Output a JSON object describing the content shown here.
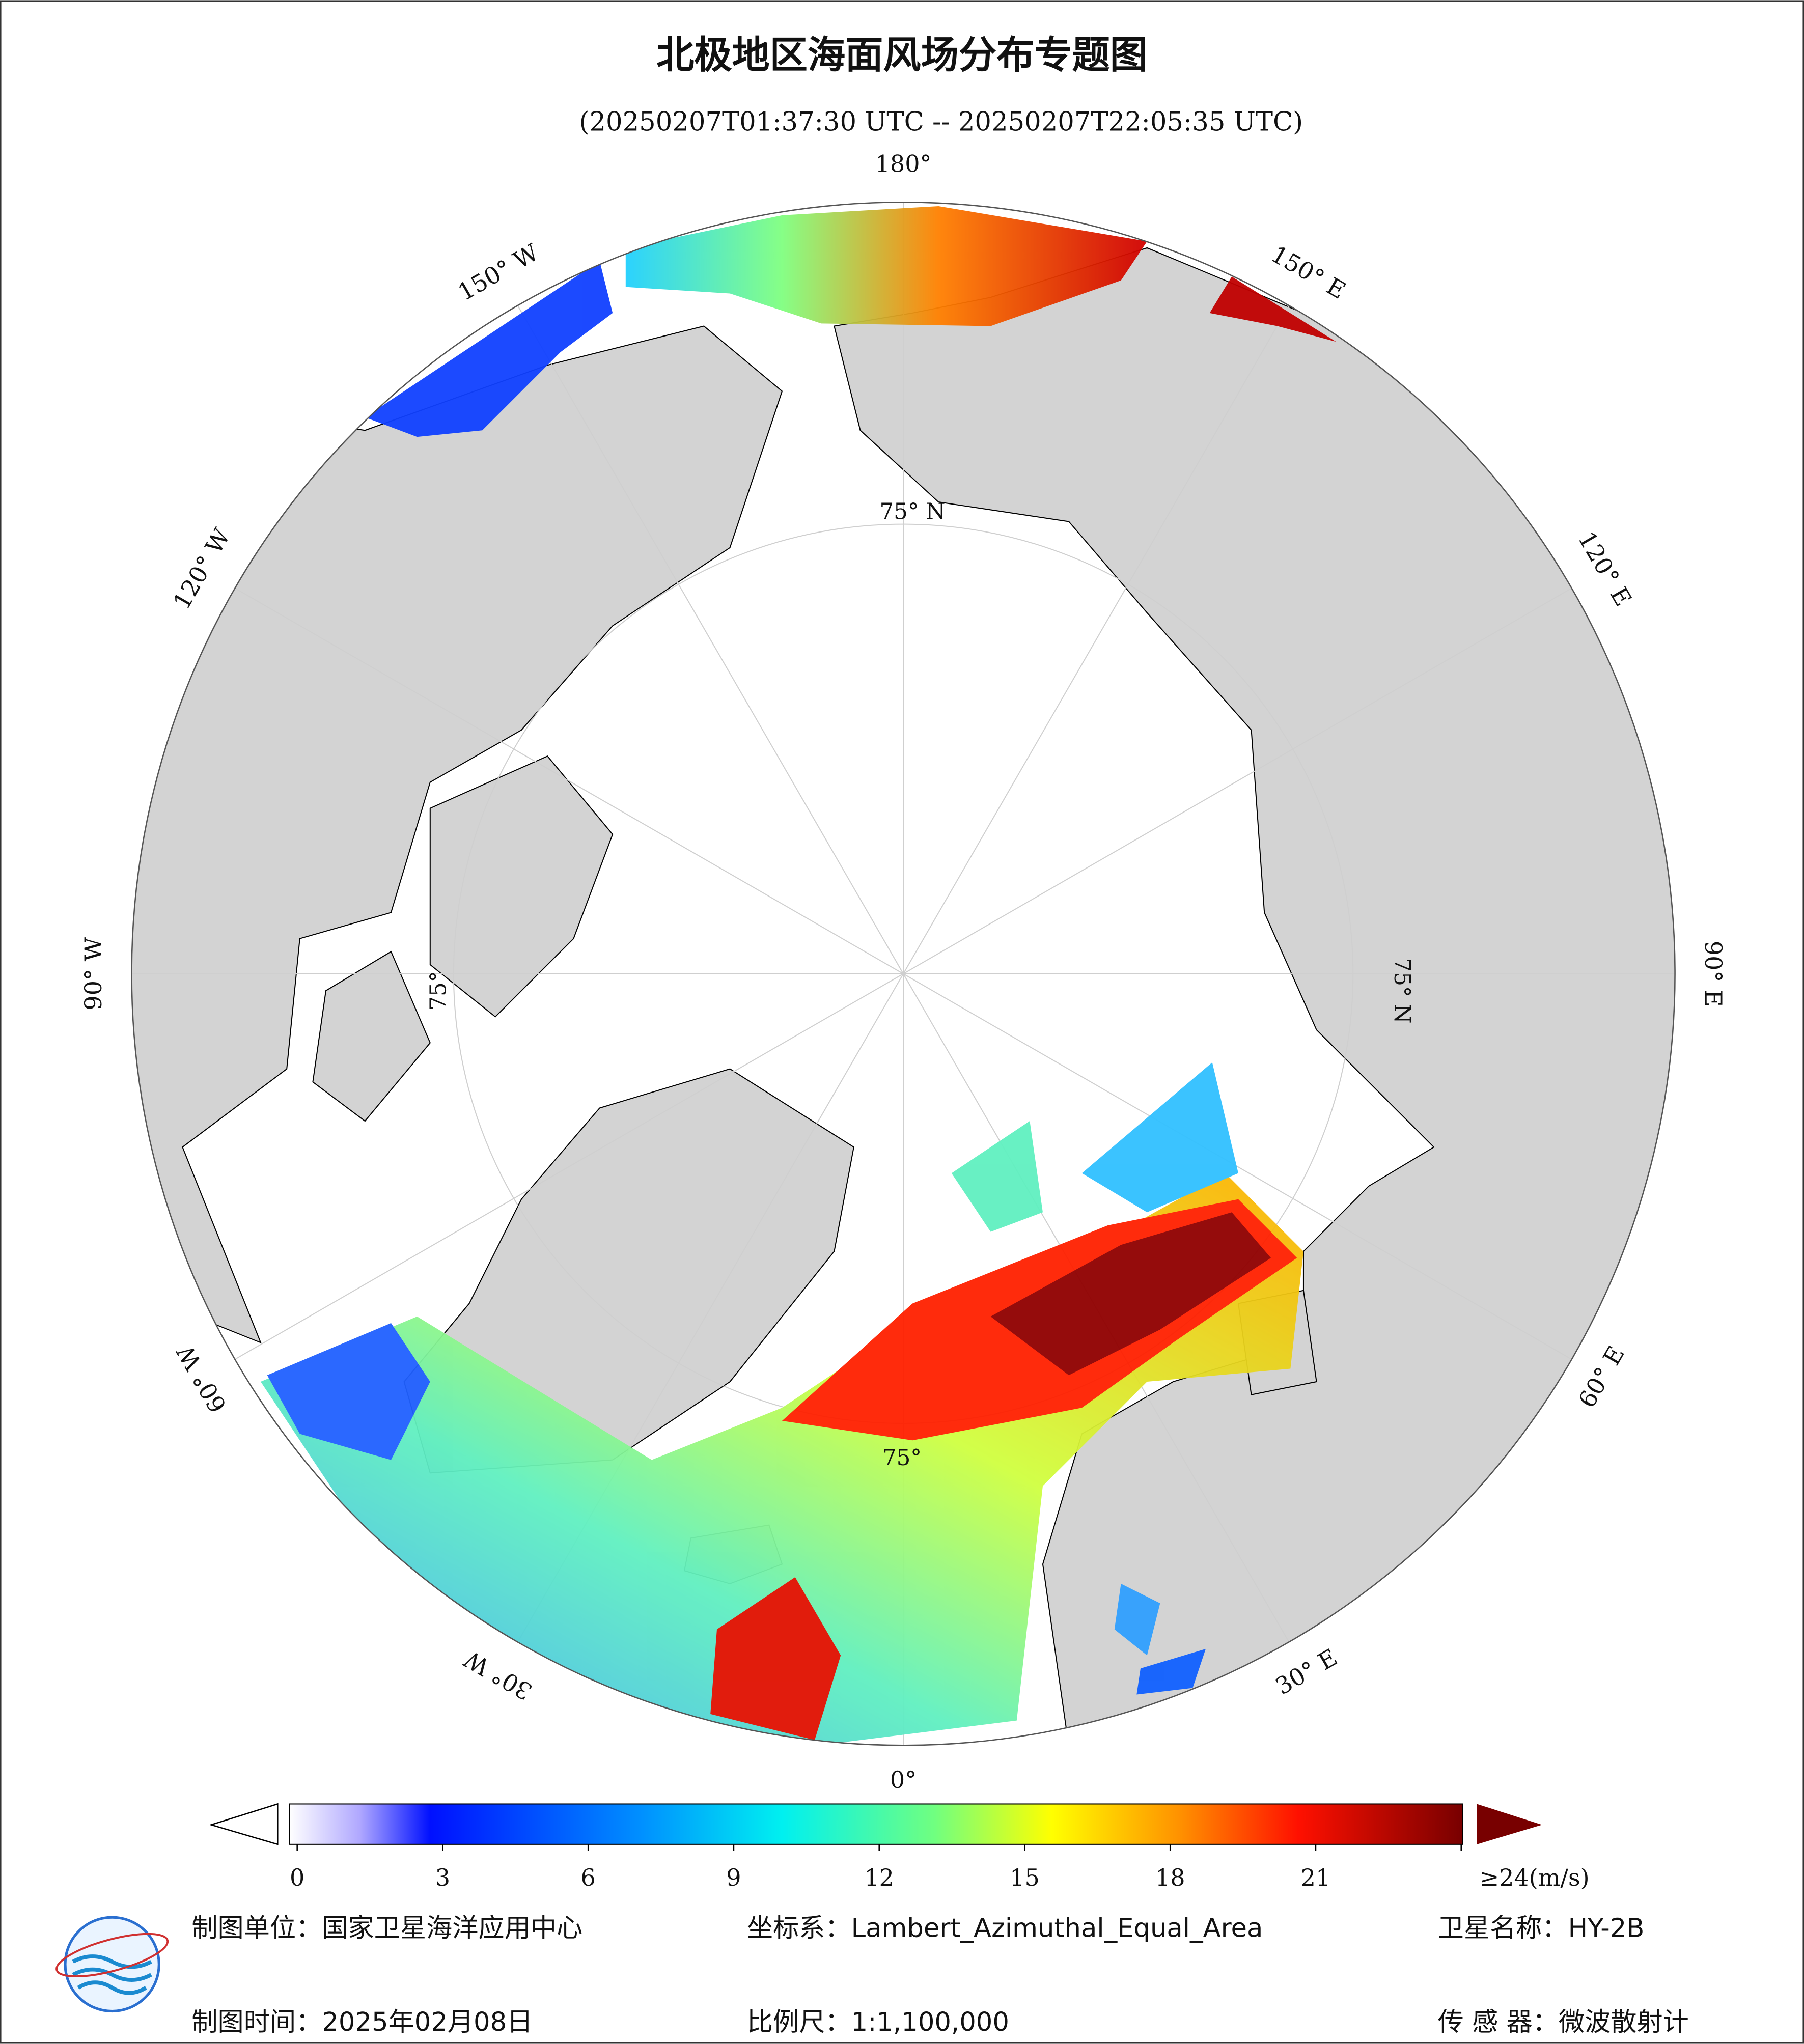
{
  "title": "北极地区海面风场分布专题图",
  "subtitle": "(20250207T01:37:30 UTC -- 20250207T22:05:35 UTC)",
  "map": {
    "longitude_labels": [
      "180°",
      "150° E",
      "120° E",
      "90° E",
      "60° E",
      "30° E",
      "0°",
      "30° W",
      "60° W",
      "90° W",
      "120° W",
      "150° W"
    ],
    "latitude_labels": [
      "75° N",
      "75° N",
      "75°",
      "75°"
    ]
  },
  "colorbar": {
    "ticks": [
      0,
      3,
      6,
      9,
      12,
      15,
      18,
      21,
      {
        "value": 24,
        "label": "≥24(m/s)"
      }
    ]
  },
  "footer": {
    "producer": "制图单位：国家卫星海洋应用中心",
    "coordinate_system": "坐标系：Lambert_Azimuthal_Equal_Area",
    "satellite": "卫星名称：HY-2B",
    "date": "制图时间：2025年02月08日",
    "scale": "比例尺：1:1,100,000",
    "sensor": "传 感 器：微波散射计"
  }
}
